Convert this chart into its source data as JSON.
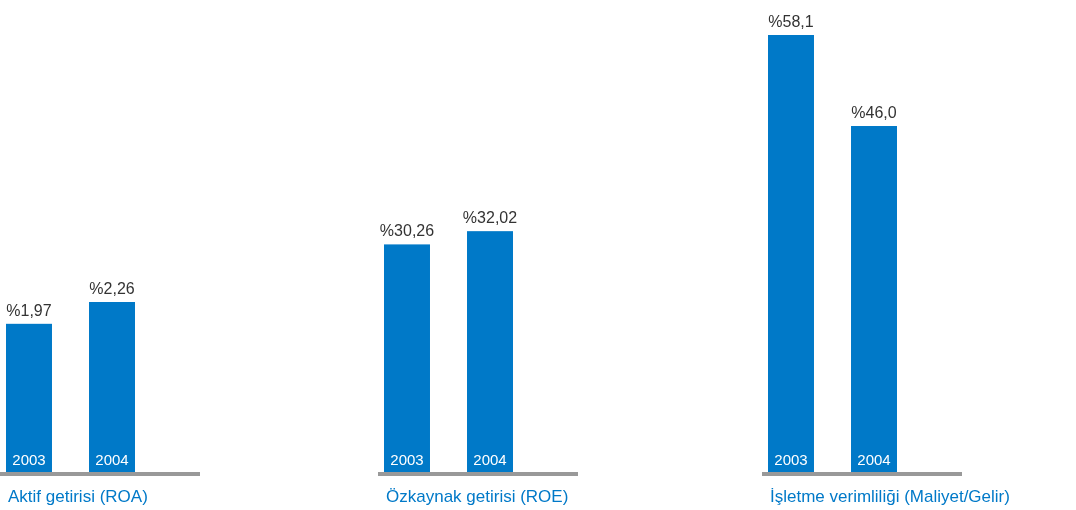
{
  "chart_data": [
    {
      "type": "bar",
      "categories": [
        "2003",
        "2004"
      ],
      "values": [
        1.97,
        2.26
      ],
      "value_labels": [
        "%1,97",
        "%2,26"
      ],
      "color": "#0079c8",
      "xlabel": "Aktif getirisi (ROA)"
    },
    {
      "type": "bar",
      "categories": [
        "2003",
        "2004"
      ],
      "values": [
        30.26,
        32.02
      ],
      "value_labels": [
        "%30,26",
        "%32,02"
      ],
      "color": "#0079c8",
      "xlabel": "Özkaynak getirisi (ROE)"
    },
    {
      "type": "bar",
      "categories": [
        "2003",
        "2004"
      ],
      "values": [
        58.1,
        46.0
      ],
      "value_labels": [
        "%58,1",
        "%46,0"
      ],
      "color": "#0079c8",
      "xlabel": "İşletme verimliliği (Maliyet/Gelir)"
    }
  ]
}
